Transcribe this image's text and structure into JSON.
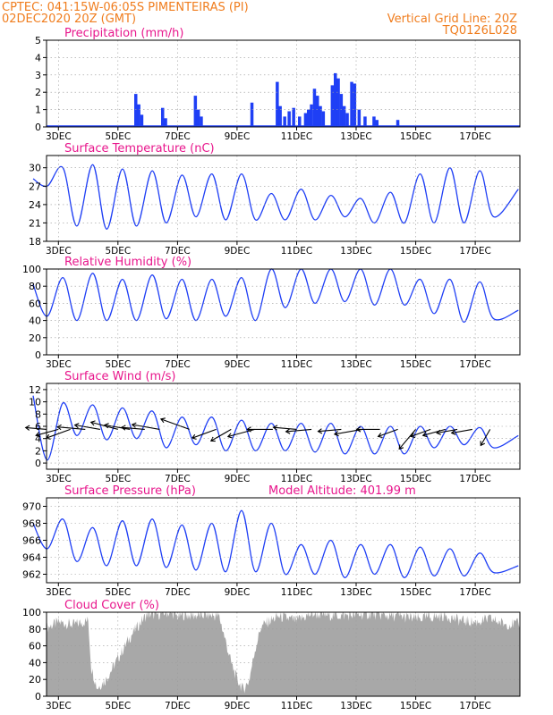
{
  "header": {
    "station": "CPTEC:   041:15W-06:05S   PIMENTEIRAS (PI)",
    "run": "02DEC2020 20Z (GMT)",
    "grid_note": "Vertical Grid Line: 20Z",
    "code": "TQ0126L028"
  },
  "colors": {
    "header": "#f07d1e",
    "title": "#e8168c",
    "series": "#1f3ff5",
    "arrows": "#000000",
    "cloud": "#a8a8a8",
    "grid": "#9a9a9a"
  },
  "x_ticks": [
    "3DEC",
    "5DEC",
    "7DEC",
    "9DEC",
    "11DEC",
    "13DEC",
    "15DEC",
    "17DEC"
  ],
  "chart_data": [
    {
      "type": "bar",
      "title": "Precipitation (mm/h)",
      "ylim": [
        0,
        5
      ],
      "yticks": [
        "0",
        "1",
        "2",
        "3",
        "4",
        "5"
      ],
      "x_unit": "days since 02DEC2020 20Z, 3-hourly",
      "events": [
        {
          "day": 3.6,
          "value": 1.9
        },
        {
          "day": 3.7,
          "value": 1.3
        },
        {
          "day": 3.8,
          "value": 0.7
        },
        {
          "day": 4.5,
          "value": 1.1
        },
        {
          "day": 4.6,
          "value": 0.5
        },
        {
          "day": 5.6,
          "value": 1.8
        },
        {
          "day": 5.7,
          "value": 1.0
        },
        {
          "day": 5.8,
          "value": 0.6
        },
        {
          "day": 7.5,
          "value": 1.4
        },
        {
          "day": 8.35,
          "value": 2.6
        },
        {
          "day": 8.45,
          "value": 1.2
        },
        {
          "day": 8.6,
          "value": 0.6
        },
        {
          "day": 8.75,
          "value": 0.9
        },
        {
          "day": 8.9,
          "value": 1.1
        },
        {
          "day": 9.1,
          "value": 0.6
        },
        {
          "day": 9.3,
          "value": 0.8
        },
        {
          "day": 9.4,
          "value": 1.0
        },
        {
          "day": 9.5,
          "value": 1.3
        },
        {
          "day": 9.6,
          "value": 2.2
        },
        {
          "day": 9.7,
          "value": 1.8
        },
        {
          "day": 9.8,
          "value": 1.2
        },
        {
          "day": 9.9,
          "value": 0.9
        },
        {
          "day": 10.2,
          "value": 2.4
        },
        {
          "day": 10.3,
          "value": 3.1
        },
        {
          "day": 10.4,
          "value": 2.8
        },
        {
          "day": 10.5,
          "value": 1.9
        },
        {
          "day": 10.6,
          "value": 1.2
        },
        {
          "day": 10.7,
          "value": 0.8
        },
        {
          "day": 10.85,
          "value": 2.6
        },
        {
          "day": 10.95,
          "value": 2.5
        },
        {
          "day": 11.1,
          "value": 1.0
        },
        {
          "day": 11.3,
          "value": 0.6
        },
        {
          "day": 11.6,
          "value": 0.6
        },
        {
          "day": 11.7,
          "value": 0.4
        },
        {
          "day": 12.4,
          "value": 0.4
        }
      ]
    },
    {
      "type": "line",
      "title": "Surface Temperature (nC)",
      "ylim": [
        18,
        32
      ],
      "yticks": [
        "18",
        "21",
        "24",
        "27",
        "30"
      ],
      "x_unit": "days since 02DEC2020 20Z",
      "daily_max": [
        28.2,
        30.0,
        30.5,
        29.8,
        29.5,
        28.8,
        29.0,
        29.0,
        25.8,
        26.5,
        25.5,
        25.0,
        26.0,
        29.0,
        30.0,
        29.5
      ],
      "daily_min": [
        27.0,
        20.5,
        20.0,
        20.5,
        21.0,
        22.0,
        21.5,
        21.5,
        21.5,
        21.5,
        22.0,
        21.0,
        21.0,
        21.0,
        21.0,
        22.0
      ],
      "end_value": 26.5
    },
    {
      "type": "line",
      "title": "Relative Humidity (%)",
      "ylim": [
        0,
        100
      ],
      "yticks": [
        "0",
        "20",
        "40",
        "60",
        "80",
        "100"
      ],
      "x_unit": "days since 02DEC2020 20Z",
      "daily_min": [
        45,
        40,
        40,
        40,
        42,
        40,
        45,
        40,
        55,
        60,
        62,
        58,
        58,
        48,
        38,
        42
      ],
      "daily_max": [
        82,
        90,
        95,
        88,
        93,
        88,
        88,
        90,
        100,
        100,
        100,
        100,
        100,
        88,
        88,
        85
      ],
      "end_value": 52
    },
    {
      "type": "line",
      "title": "Surface Wind (m/s)",
      "ylim": [
        -1,
        13
      ],
      "yticks": [
        "0",
        "2",
        "4",
        "6",
        "8",
        "10",
        "12"
      ],
      "x_unit": "days since 02DEC2020 20Z",
      "daily_min": [
        0.5,
        4.5,
        3.8,
        4.0,
        2.5,
        3.0,
        2.0,
        2.0,
        2.0,
        1.8,
        1.5,
        1.5,
        1.5,
        2.5,
        3.0,
        2.5
      ],
      "daily_max": [
        11.0,
        9.8,
        9.5,
        9.0,
        8.5,
        7.5,
        7.5,
        7.0,
        6.5,
        6.5,
        6.5,
        6.0,
        6.0,
        6.0,
        6.0,
        5.8
      ],
      "end_value": 4.5,
      "arrow_days": [
        0.6,
        1.0,
        1.4,
        1.9,
        2.4,
        3.0,
        3.4,
        3.9,
        4.4,
        5.4,
        6.3,
        6.8,
        7.6,
        8.2,
        9.0,
        9.5,
        10.5,
        11.2,
        11.8,
        12.4,
        13.0,
        13.5,
        14.0,
        14.4,
        14.9,
        15.5
      ],
      "arrow_angles_deg": [
        175,
        195,
        200,
        175,
        170,
        165,
        170,
        175,
        170,
        160,
        200,
        210,
        195,
        180,
        175,
        185,
        185,
        190,
        180,
        200,
        230,
        200,
        195,
        190,
        190,
        240
      ],
      "arrow_lengths": [
        0.9,
        1.0,
        1.1,
        1.2,
        1.1,
        1.2,
        1.1,
        1.0,
        1.2,
        1.3,
        1.1,
        1.0,
        1.2,
        1.1,
        1.0,
        1.1,
        1.0,
        1.2,
        1.0,
        0.9,
        1.1,
        0.9,
        1.0,
        0.9,
        0.9,
        0.8
      ]
    },
    {
      "type": "line",
      "title": "Surface Pressure (hPa)",
      "subtitle": "Model Altitude: 401.99 m",
      "ylim": [
        961,
        971
      ],
      "yticks": [
        "962",
        "964",
        "966",
        "968",
        "970"
      ],
      "x_unit": "days since 02DEC2020 20Z",
      "daily_max": [
        968.0,
        968.5,
        967.5,
        968.3,
        968.5,
        967.8,
        968.0,
        969.5,
        968.0,
        965.5,
        966.0,
        965.5,
        965.5,
        965.2,
        965.0,
        964.5
      ],
      "daily_min": [
        965.0,
        963.5,
        963.0,
        963.0,
        962.8,
        962.5,
        962.3,
        962.3,
        962.0,
        962.0,
        961.6,
        962.0,
        961.6,
        961.8,
        961.8,
        962.2
      ],
      "end_value": 963.0
    },
    {
      "type": "area",
      "title": "Cloud Cover (%)",
      "ylim": [
        0,
        100
      ],
      "yticks": [
        "0",
        "20",
        "40",
        "60",
        "80",
        "100"
      ],
      "x_unit": "days since 02DEC2020 20Z",
      "knots_day": [
        0.0,
        0.5,
        1.0,
        1.5,
        2.0,
        2.1,
        2.3,
        2.6,
        3.0,
        3.4,
        3.8,
        4.0,
        4.3,
        4.6,
        4.9,
        5.0,
        5.2,
        5.6,
        6.0,
        6.4,
        6.8,
        7.0,
        7.2,
        7.4,
        7.6,
        7.8,
        8.0,
        8.4,
        9.0,
        9.5,
        10.0,
        10.5,
        11.0,
        11.5,
        12.0,
        12.5,
        13.0,
        13.5,
        14.0,
        14.5,
        15.0,
        15.5,
        16.0
      ],
      "knots_value": [
        82,
        80,
        88,
        85,
        90,
        35,
        10,
        20,
        45,
        70,
        90,
        98,
        97,
        100,
        98,
        95,
        97,
        96,
        97,
        95,
        40,
        20,
        8,
        18,
        55,
        82,
        88,
        95,
        90,
        98,
        97,
        96,
        97,
        98,
        96,
        95,
        92,
        94,
        96,
        90,
        88,
        92,
        86
      ]
    }
  ]
}
